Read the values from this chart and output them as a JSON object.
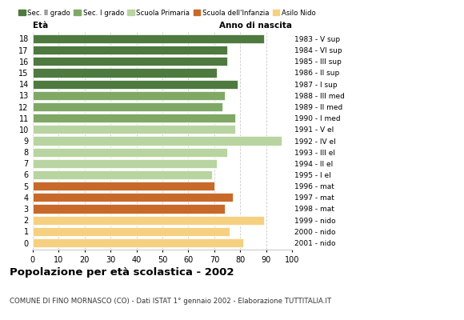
{
  "ages": [
    18,
    17,
    16,
    15,
    14,
    13,
    12,
    11,
    10,
    9,
    8,
    7,
    6,
    5,
    4,
    3,
    2,
    1,
    0
  ],
  "values": [
    89,
    75,
    75,
    71,
    79,
    74,
    73,
    78,
    78,
    96,
    75,
    71,
    69,
    70,
    77,
    74,
    89,
    76,
    81
  ],
  "right_labels": [
    "1983 - V sup",
    "1984 - VI sup",
    "1985 - III sup",
    "1986 - II sup",
    "1987 - I sup",
    "1988 - III med",
    "1989 - II med",
    "1990 - I med",
    "1991 - V el",
    "1992 - IV el",
    "1993 - III el",
    "1994 - II el",
    "1995 - I el",
    "1996 - mat",
    "1997 - mat",
    "1998 - mat",
    "1999 - nido",
    "2000 - nido",
    "2001 - nido"
  ],
  "colors": [
    "#4e7a3f",
    "#4e7a3f",
    "#4e7a3f",
    "#4e7a3f",
    "#4e7a3f",
    "#7fa865",
    "#7fa865",
    "#7fa865",
    "#b8d4a0",
    "#b8d4a0",
    "#b8d4a0",
    "#b8d4a0",
    "#b8d4a0",
    "#c8692a",
    "#c8692a",
    "#c8692a",
    "#f5d080",
    "#f5d080",
    "#f5d080"
  ],
  "legend_labels": [
    "Sec. II grado",
    "Sec. I grado",
    "Scuola Primaria",
    "Scuola dell'Infanzia",
    "Asilo Nido"
  ],
  "legend_colors": [
    "#4e7a3f",
    "#7fa865",
    "#b8d4a0",
    "#c8692a",
    "#f5d080"
  ],
  "title": "Popolazione per età scolastica - 2002",
  "subtitle": "COMUNE DI FINO MORNASCO (CO) - Dati ISTAT 1° gennaio 2002 - Elaborazione TUTTITALIA.IT",
  "xlabel_left": "Età",
  "xlabel_right": "Anno di nascita",
  "xlim": [
    0,
    100
  ],
  "xticks": [
    0,
    10,
    20,
    30,
    40,
    50,
    60,
    70,
    80,
    90,
    100
  ],
  "bar_height": 0.78,
  "background_color": "#ffffff",
  "grid_color": "#cccccc"
}
